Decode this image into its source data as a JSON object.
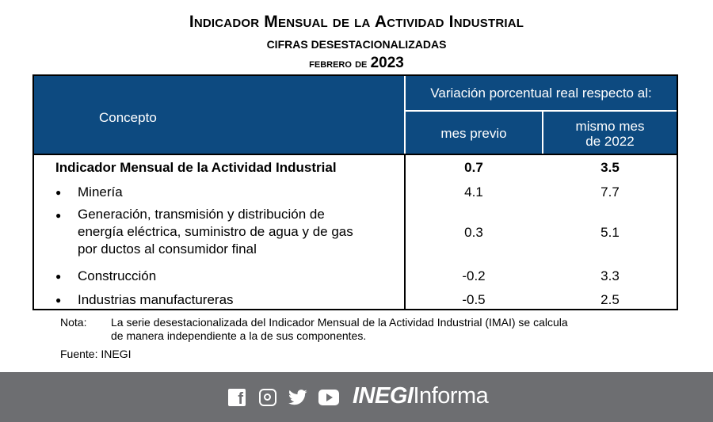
{
  "header": {
    "title": "Indicador Mensual de la Actividad Industrial",
    "subtitle": "CIFRAS DESESTACIONALIZADAS",
    "period_prefix": "febrero de",
    "period_year": "2023"
  },
  "table": {
    "col_concept": "Concepto",
    "col_group": "Variación porcentual real respecto al:",
    "col_prev": "mes previo",
    "col_same_line1": "mismo mes",
    "col_same_line2": "de 2022",
    "rows": [
      {
        "label": "Indicador Mensual de la Actividad Industrial",
        "mes_previo": "0.7",
        "mismo_mes": "3.5"
      },
      {
        "label": "Minería",
        "mes_previo": "4.1",
        "mismo_mes": "7.7"
      },
      {
        "label_lines": [
          "Generación, transmisión y distribución de",
          "energía eléctrica, suministro de agua y de gas",
          "por ductos al consumidor final"
        ],
        "mes_previo": "0.3",
        "mismo_mes": "5.1"
      },
      {
        "label": "Construcción",
        "mes_previo": "-0.2",
        "mismo_mes": "3.3"
      },
      {
        "label": "Industrias manufactureras",
        "mes_previo": "-0.5",
        "mismo_mes": "2.5"
      }
    ],
    "bullet": "●"
  },
  "notes": {
    "nota_key": "Nota:",
    "nota_line1": "La serie desestacionalizada del Indicador Mensual de la Actividad Industrial (IMAI) se calcula",
    "nota_line2": "de manera independiente a la de sus componentes.",
    "fuente": "Fuente: INEGI"
  },
  "footer": {
    "brand_bold": "INEGI",
    "brand_light": "Informa",
    "fb_glyph": "f",
    "icons": [
      "facebook-icon",
      "instagram-icon",
      "twitter-icon",
      "youtube-icon"
    ]
  },
  "colors": {
    "header_bg": "#0d4a80",
    "footer_bg": "#6d6e71"
  }
}
